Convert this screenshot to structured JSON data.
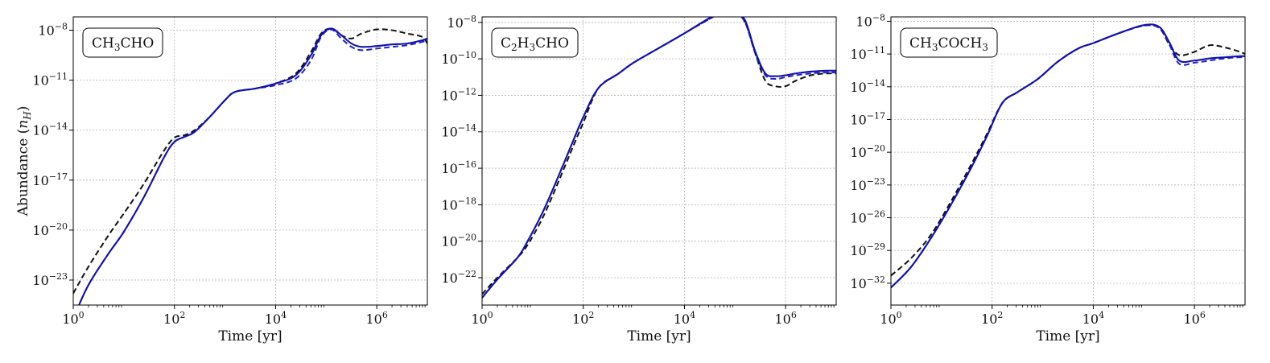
{
  "figure": {
    "ylabel_parts": [
      "Abundance (",
      "n",
      "H",
      ")"
    ]
  },
  "chart_data": [
    {
      "type": "line",
      "label_parts": [
        [
          "CH",
          "n"
        ],
        [
          "3",
          "sub"
        ],
        [
          "CHO",
          "n"
        ]
      ],
      "xlabel": "Time [yr]",
      "xscale": "log",
      "yscale": "log",
      "xlim_log10": [
        0,
        7
      ],
      "ylim_log10": [
        -24.5,
        -7.2
      ],
      "x_ticks_log10": [
        0,
        2,
        4,
        6
      ],
      "y_ticks_log10": [
        -23,
        -20,
        -17,
        -14,
        -11,
        -8
      ],
      "grid": true,
      "series": [
        {
          "style": "dashed",
          "color": "#111111",
          "log10_t": [
            0,
            0.3,
            0.7,
            1.0,
            1.4,
            1.8,
            2.0,
            2.2,
            2.4,
            2.7,
            3.0,
            3.2,
            3.6,
            4.0,
            4.4,
            4.7,
            4.9,
            5.1,
            5.3,
            5.5,
            5.7,
            6.0,
            6.3,
            6.6,
            6.9,
            7.0
          ],
          "log10_y": [
            -23.8,
            -22.2,
            -20.3,
            -19.0,
            -17.2,
            -15.2,
            -14.45,
            -14.3,
            -14.0,
            -13.2,
            -12.2,
            -11.7,
            -11.5,
            -11.2,
            -10.6,
            -9.3,
            -8.2,
            -7.9,
            -8.3,
            -8.5,
            -8.2,
            -7.95,
            -8.0,
            -8.2,
            -8.4,
            -8.8
          ]
        },
        {
          "style": "dashed",
          "color": "#2222cc",
          "log10_t": [
            0,
            0.3,
            0.7,
            1.0,
            1.4,
            1.8,
            2.0,
            2.2,
            2.4,
            2.7,
            3.0,
            3.2,
            3.6,
            4.0,
            4.4,
            4.7,
            4.9,
            5.1,
            5.3,
            5.5,
            5.7,
            6.0,
            6.3,
            6.6,
            6.9,
            7.0
          ],
          "log10_y": [
            -25.3,
            -23.3,
            -21.4,
            -20.1,
            -18.0,
            -15.6,
            -14.7,
            -14.4,
            -14.1,
            -13.2,
            -12.2,
            -11.7,
            -11.5,
            -11.3,
            -10.9,
            -9.8,
            -8.4,
            -7.95,
            -8.5,
            -9.0,
            -9.2,
            -9.1,
            -9.0,
            -8.9,
            -8.7,
            -8.6
          ]
        },
        {
          "style": "solid",
          "color": "#1010b0",
          "log10_t": [
            0,
            0.3,
            0.7,
            1.0,
            1.4,
            1.8,
            2.0,
            2.2,
            2.4,
            2.7,
            3.0,
            3.2,
            3.6,
            4.0,
            4.4,
            4.7,
            4.9,
            5.1,
            5.3,
            5.5,
            5.7,
            6.0,
            6.3,
            6.6,
            6.9,
            7.0
          ],
          "log10_y": [
            -25.3,
            -23.3,
            -21.4,
            -20.1,
            -18.0,
            -15.6,
            -14.7,
            -14.4,
            -14.1,
            -13.2,
            -12.2,
            -11.7,
            -11.5,
            -11.2,
            -10.7,
            -9.5,
            -8.3,
            -7.9,
            -8.3,
            -8.8,
            -9.0,
            -8.95,
            -8.85,
            -8.8,
            -8.6,
            -8.5
          ]
        }
      ]
    },
    {
      "type": "line",
      "label_parts": [
        [
          "C",
          "n"
        ],
        [
          "2",
          "sub"
        ],
        [
          "H",
          "n"
        ],
        [
          "3",
          "sub"
        ],
        [
          "CHO",
          "n"
        ]
      ],
      "xlabel": "Time [yr]",
      "xscale": "log",
      "yscale": "log",
      "xlim_log10": [
        0,
        7
      ],
      "ylim_log10": [
        -23.5,
        -7.7
      ],
      "x_ticks_log10": [
        0,
        2,
        4,
        6
      ],
      "y_ticks_log10": [
        -22,
        -20,
        -18,
        -16,
        -14,
        -12,
        -10,
        -8
      ],
      "grid": true,
      "series": [
        {
          "style": "dashed",
          "color": "#111111",
          "log10_t": [
            0,
            0.3,
            0.7,
            0.9,
            1.2,
            1.5,
            1.8,
            2.0,
            2.3,
            2.7,
            3.0,
            3.5,
            4.0,
            4.5,
            4.8,
            5.0,
            5.2,
            5.4,
            5.6,
            5.8,
            6.0,
            6.2,
            6.5,
            6.8,
            7.0
          ],
          "log10_y": [
            -22.9,
            -22.0,
            -20.9,
            -20.2,
            -18.7,
            -16.8,
            -14.8,
            -13.5,
            -11.6,
            -10.8,
            -10.2,
            -9.4,
            -8.6,
            -7.8,
            -7.4,
            -7.45,
            -8.0,
            -9.7,
            -11.2,
            -11.5,
            -11.5,
            -11.2,
            -10.9,
            -10.8,
            -10.8
          ]
        },
        {
          "style": "dashed",
          "color": "#2222cc",
          "log10_t": [
            0,
            0.3,
            0.7,
            0.9,
            1.2,
            1.5,
            1.8,
            2.0,
            2.3,
            2.7,
            3.0,
            3.5,
            4.0,
            4.5,
            4.8,
            5.0,
            5.2,
            5.4,
            5.6,
            5.8,
            6.0,
            6.2,
            6.5,
            6.8,
            7.0
          ],
          "log10_y": [
            -23.1,
            -22.1,
            -20.9,
            -20.0,
            -18.4,
            -16.5,
            -14.5,
            -13.2,
            -11.6,
            -10.8,
            -10.2,
            -9.4,
            -8.6,
            -7.8,
            -7.4,
            -7.45,
            -8.0,
            -9.7,
            -10.9,
            -11.1,
            -11.0,
            -10.9,
            -10.8,
            -10.75,
            -10.75
          ]
        },
        {
          "style": "solid",
          "color": "#1010b0",
          "log10_t": [
            0,
            0.3,
            0.7,
            0.9,
            1.2,
            1.5,
            1.8,
            2.0,
            2.3,
            2.7,
            3.0,
            3.5,
            4.0,
            4.5,
            4.8,
            5.0,
            5.2,
            5.4,
            5.6,
            5.8,
            6.0,
            6.2,
            6.5,
            6.8,
            7.0
          ],
          "log10_y": [
            -23.1,
            -22.1,
            -20.9,
            -20.0,
            -18.4,
            -16.5,
            -14.5,
            -13.2,
            -11.6,
            -10.8,
            -10.2,
            -9.4,
            -8.6,
            -7.75,
            -7.35,
            -7.4,
            -7.9,
            -9.6,
            -10.8,
            -10.95,
            -10.9,
            -10.8,
            -10.7,
            -10.65,
            -10.65
          ]
        }
      ]
    },
    {
      "type": "line",
      "label_parts": [
        [
          "CH",
          "n"
        ],
        [
          "3",
          "sub"
        ],
        [
          "COCH",
          "n"
        ],
        [
          "3",
          "sub"
        ]
      ],
      "xlabel": "Time [yr]",
      "xscale": "log",
      "yscale": "log",
      "xlim_log10": [
        0,
        7
      ],
      "ylim_log10": [
        -34.0,
        -7.6
      ],
      "x_ticks_log10": [
        0,
        2,
        4,
        6
      ],
      "y_ticks_log10": [
        -32,
        -29,
        -26,
        -23,
        -20,
        -17,
        -14,
        -11,
        -8
      ],
      "grid": true,
      "series": [
        {
          "style": "dashed",
          "color": "#111111",
          "log10_t": [
            0,
            0.4,
            0.8,
            1.2,
            1.6,
            1.9,
            2.2,
            2.5,
            2.9,
            3.3,
            3.7,
            4.0,
            4.5,
            5.0,
            5.3,
            5.5,
            5.7,
            6.0,
            6.3,
            6.6,
            6.9,
            7.0
          ],
          "log10_y": [
            -31.3,
            -29.7,
            -27.5,
            -24.4,
            -21.0,
            -18.3,
            -15.5,
            -14.5,
            -13.3,
            -11.7,
            -10.5,
            -10.0,
            -9.1,
            -8.4,
            -8.6,
            -10.1,
            -11.1,
            -10.8,
            -10.2,
            -10.4,
            -10.8,
            -11.0
          ]
        },
        {
          "style": "dashed",
          "color": "#2222cc",
          "log10_t": [
            0,
            0.4,
            0.8,
            1.2,
            1.6,
            1.9,
            2.2,
            2.5,
            2.9,
            3.3,
            3.7,
            4.0,
            4.5,
            5.0,
            5.3,
            5.5,
            5.7,
            6.0,
            6.3,
            6.6,
            6.9,
            7.0
          ],
          "log10_y": [
            -32.4,
            -30.5,
            -27.8,
            -24.7,
            -21.3,
            -18.5,
            -15.5,
            -14.5,
            -13.3,
            -11.7,
            -10.5,
            -10.0,
            -9.1,
            -8.4,
            -8.6,
            -10.1,
            -11.9,
            -11.8,
            -11.6,
            -11.4,
            -11.3,
            -11.3
          ]
        },
        {
          "style": "solid",
          "color": "#1010b0",
          "log10_t": [
            0,
            0.4,
            0.8,
            1.2,
            1.6,
            1.9,
            2.2,
            2.5,
            2.9,
            3.3,
            3.7,
            4.0,
            4.5,
            5.0,
            5.3,
            5.5,
            5.7,
            6.0,
            6.3,
            6.6,
            6.9,
            7.0
          ],
          "log10_y": [
            -32.4,
            -30.5,
            -27.8,
            -24.7,
            -21.3,
            -18.5,
            -15.5,
            -14.5,
            -13.3,
            -11.7,
            -10.5,
            -10.0,
            -9.1,
            -8.35,
            -8.5,
            -9.9,
            -11.6,
            -11.6,
            -11.4,
            -11.3,
            -11.2,
            -11.2
          ]
        }
      ]
    }
  ]
}
